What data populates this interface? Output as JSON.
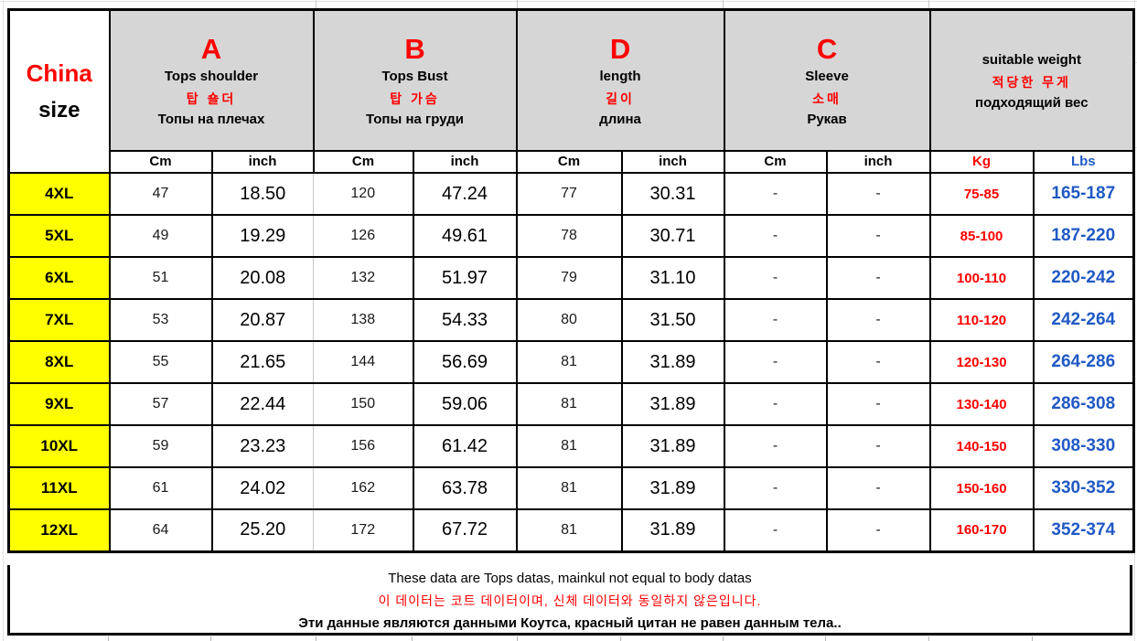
{
  "header": {
    "china": {
      "line1": "China",
      "line2": "size"
    },
    "groups": [
      {
        "letter": "A",
        "name": "Tops shoulder",
        "korean": "탑 숄더",
        "russian": "Топы на плечах",
        "russian_bold": false,
        "units": [
          "Cm",
          "inch"
        ]
      },
      {
        "letter": "B",
        "name": "Tops Bust",
        "korean": "탑 가슴",
        "russian": "Топы на груди",
        "russian_bold": false,
        "units": [
          "Cm",
          "inch"
        ]
      },
      {
        "letter": "D",
        "name": "length",
        "korean": "길이",
        "russian": "длина",
        "russian_bold": true,
        "units": [
          "Cm",
          "inch"
        ]
      },
      {
        "letter": "C",
        "name": "Sleeve",
        "korean": "소매",
        "russian": "Рукав",
        "russian_bold": true,
        "units": [
          "Cm",
          "inch"
        ]
      },
      {
        "letter": "",
        "name": "suitable weight",
        "korean": "적당한 무게",
        "russian": "подходящий вес",
        "russian_bold": true,
        "units": [
          "Kg",
          "Lbs"
        ]
      }
    ],
    "value_columns": [
      "a-cm",
      "a-inch",
      "b-cm",
      "b-inch",
      "d-cm",
      "d-inch",
      "c-cm",
      "c-inch",
      "kg",
      "lbs"
    ]
  },
  "rows": [
    {
      "size": "4XL",
      "values": [
        "47",
        "18.50",
        "120",
        "47.24",
        "77",
        "30.31",
        "-",
        "-",
        "75-85",
        "165-187"
      ]
    },
    {
      "size": "5XL",
      "values": [
        "49",
        "19.29",
        "126",
        "49.61",
        "78",
        "30.71",
        "-",
        "-",
        "85-100",
        "187-220"
      ]
    },
    {
      "size": "6XL",
      "values": [
        "51",
        "20.08",
        "132",
        "51.97",
        "79",
        "31.10",
        "-",
        "-",
        "100-110",
        "220-242"
      ]
    },
    {
      "size": "7XL",
      "values": [
        "53",
        "20.87",
        "138",
        "54.33",
        "80",
        "31.50",
        "-",
        "-",
        "110-120",
        "242-264"
      ]
    },
    {
      "size": "8XL",
      "values": [
        "55",
        "21.65",
        "144",
        "56.69",
        "81",
        "31.89",
        "-",
        "-",
        "120-130",
        "264-286"
      ]
    },
    {
      "size": "9XL",
      "values": [
        "57",
        "22.44",
        "150",
        "59.06",
        "81",
        "31.89",
        "-",
        "-",
        "130-140",
        "286-308"
      ]
    },
    {
      "size": "10XL",
      "values": [
        "59",
        "23.23",
        "156",
        "61.42",
        "81",
        "31.89",
        "-",
        "-",
        "140-150",
        "308-330"
      ]
    },
    {
      "size": "11XL",
      "values": [
        "61",
        "24.02",
        "162",
        "63.78",
        "81",
        "31.89",
        "-",
        "-",
        "150-160",
        "330-352"
      ]
    },
    {
      "size": "12XL",
      "values": [
        "64",
        "25.20",
        "172",
        "67.72",
        "81",
        "31.89",
        "-",
        "-",
        "160-170",
        "352-374"
      ]
    }
  ],
  "footer": {
    "line1": "These data are Tops datas, mainkul not equal to body datas",
    "line2": "이 데이터는 코트 데이터이며, 신체 데이터와 동일하지 않은입니다.",
    "line3": "Эти данные являются данными Коутса, красный цитан не равен данным тела.."
  },
  "colors": {
    "red": "#ff0000",
    "blue": "#2059c4",
    "yellow": "#ffff00",
    "header_gray": "#d6d6d6",
    "border": "#000000",
    "faint_line": "#c9c9c9"
  }
}
